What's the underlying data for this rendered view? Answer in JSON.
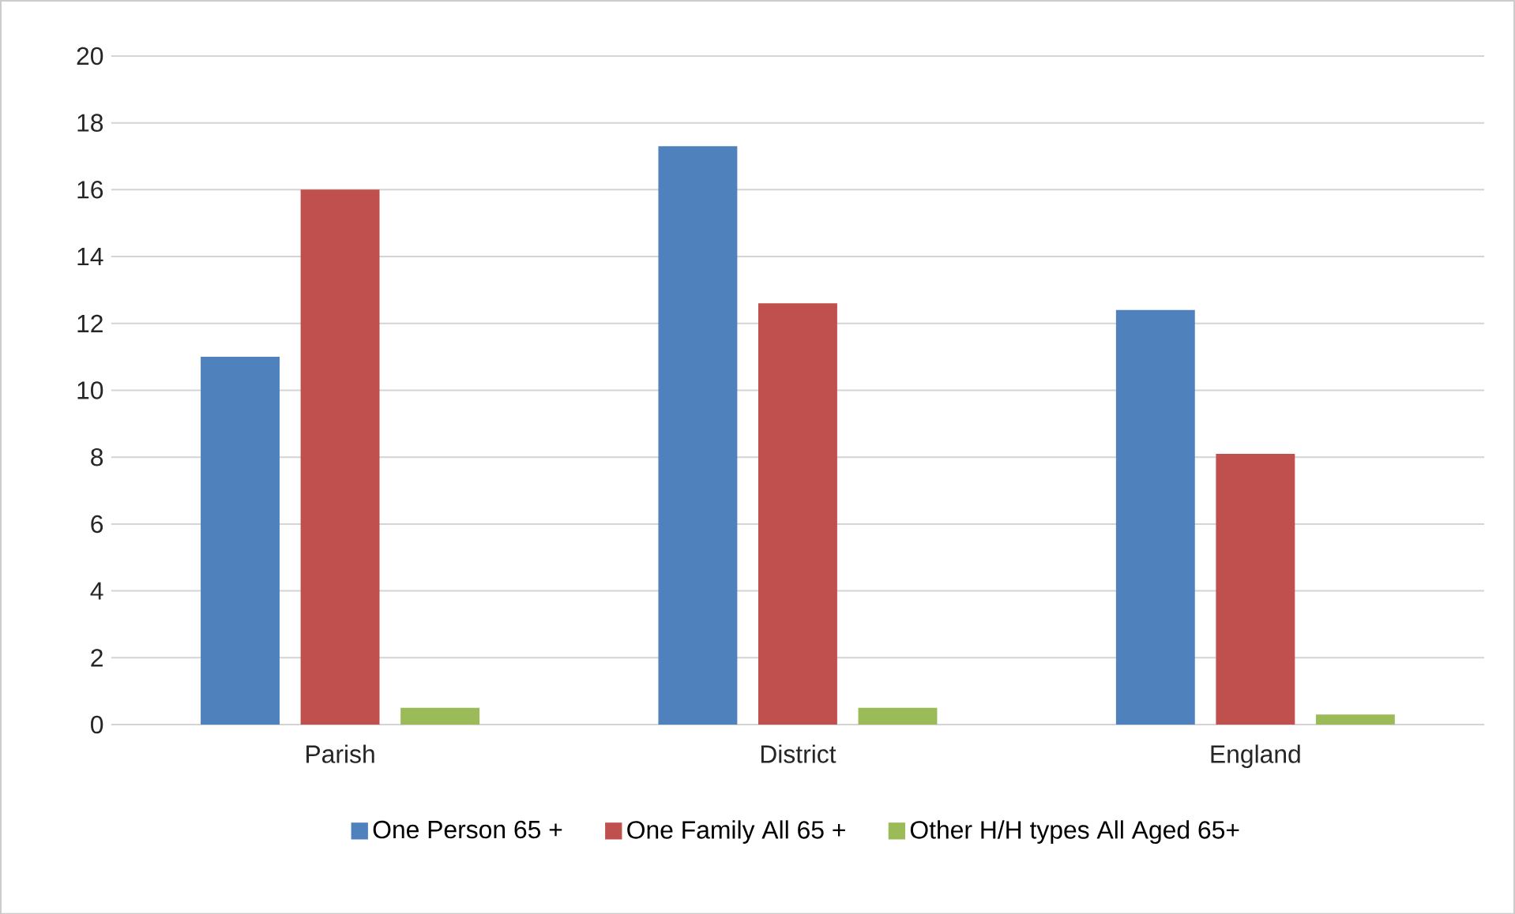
{
  "chart_data": {
    "type": "bar",
    "categories": [
      "Parish",
      "District",
      "England"
    ],
    "series": [
      {
        "name": "One Person 65 +",
        "color": "#4f81bd",
        "values": [
          11,
          17.3,
          12.4
        ]
      },
      {
        "name": "One Family All 65 +",
        "color": "#c0504d",
        "values": [
          16,
          12.6,
          8.1
        ]
      },
      {
        "name": "Other H/H types All Aged 65+",
        "color": "#9bbb59",
        "values": [
          0.5,
          0.5,
          0.3
        ]
      }
    ],
    "ylim": [
      0,
      20
    ],
    "yticks": [
      0,
      2,
      4,
      6,
      8,
      10,
      12,
      14,
      16,
      18,
      20
    ],
    "grid": "y",
    "legend": "bottom"
  }
}
